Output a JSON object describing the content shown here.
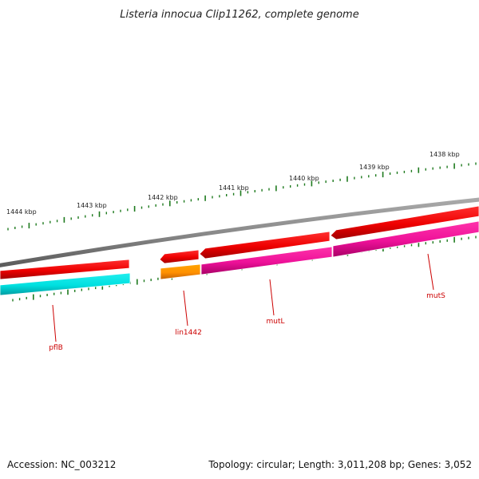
{
  "title": "Listeria innocua Clip11262, complete genome",
  "footer": {
    "accession": "Accession: NC_003212",
    "summary": "Topology: circular; Length: 3,011,208 bp; Genes: 3,052"
  },
  "ticks": [
    "1444 kbp",
    "1443 kbp",
    "1442 kbp",
    "1441 kbp",
    "1440 kbp",
    "1439 kbp",
    "1438 kbp"
  ],
  "genes": [
    "pflB",
    "lin1442",
    "mutL",
    "mutS"
  ],
  "colors": {
    "backbone": "#8a8a8a",
    "tick": "#1e7a1e",
    "label_line": "#cc0000",
    "cds": "#ee0000",
    "cds_dark": "#b00000",
    "gene_cyan": "#00dddd",
    "gene_orange": "#ff9900",
    "gene_magenta": "#ee1199"
  }
}
